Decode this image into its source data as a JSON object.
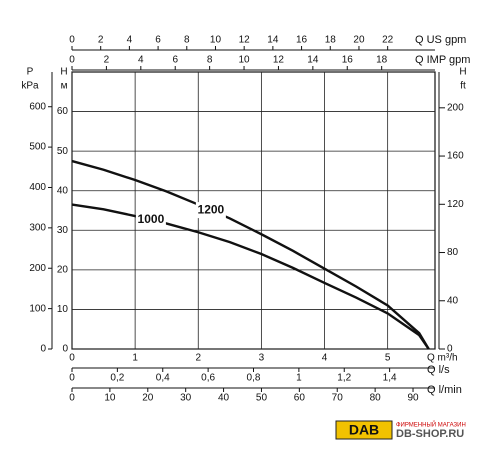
{
  "chart_data": {
    "type": "line",
    "grid": true,
    "xlabel": "Q m³/h",
    "xlim": [
      0,
      5.75
    ],
    "xticks": [
      0,
      1,
      2,
      3,
      4,
      5
    ],
    "ylabel": [
      "H",
      "м"
    ],
    "ylim": [
      0,
      70
    ],
    "yticks": [
      0,
      10,
      20,
      30,
      40,
      50,
      60
    ],
    "y2label": [
      "H",
      "ft"
    ],
    "y2lim": [
      0,
      229.7
    ],
    "y2ticks": [
      0,
      40,
      80,
      120,
      160,
      200
    ],
    "left_axes": [
      {
        "label": [
          "P",
          "kPa"
        ],
        "ylim": [
          0,
          686
        ],
        "ticks": [
          0,
          100,
          200,
          300,
          400,
          500,
          600
        ]
      }
    ],
    "top_axes": [
      {
        "label": "Q US gpm",
        "xlim": [
          0,
          25.3
        ],
        "ticks": [
          0,
          2,
          4,
          6,
          8,
          10,
          12,
          14,
          16,
          18,
          20,
          22
        ]
      },
      {
        "label": "Q IMP gpm",
        "xlim": [
          0,
          21.1
        ],
        "ticks": [
          0,
          2,
          4,
          6,
          8,
          10,
          12,
          14,
          16,
          18
        ]
      }
    ],
    "bottom_axes": [
      {
        "label": "Q l/s",
        "xlim": [
          0,
          1.6
        ],
        "ticks": [
          0,
          {
            "value": 0.2,
            "label": "0,2"
          },
          {
            "value": 0.4,
            "label": "0,4"
          },
          {
            "value": 0.6,
            "label": "0,6"
          },
          {
            "value": 0.8,
            "label": "0,8"
          },
          1,
          {
            "value": 1.2,
            "label": "1,2"
          },
          {
            "value": 1.4,
            "label": "1,4"
          }
        ]
      },
      {
        "label": "Q l/min",
        "xlim": [
          0,
          95.8
        ],
        "ticks": [
          0,
          10,
          20,
          30,
          40,
          50,
          60,
          70,
          80,
          90
        ]
      }
    ],
    "series": [
      {
        "name": "1000",
        "color": "#111111",
        "x": [
          0,
          0.5,
          1,
          1.5,
          2,
          2.5,
          3,
          3.5,
          4,
          4.5,
          5,
          5.5,
          5.65
        ],
        "values": [
          36.5,
          35.3,
          33.6,
          31.7,
          29.5,
          27,
          24,
          20.5,
          16.7,
          13,
          9,
          3.5,
          0
        ]
      },
      {
        "name": "1200",
        "color": "#111111",
        "x": [
          0,
          0.5,
          1,
          1.5,
          2,
          2.5,
          3,
          3.5,
          4,
          4.5,
          5,
          5.5,
          5.65
        ],
        "values": [
          47.5,
          45.3,
          42.7,
          39.8,
          36.5,
          33,
          29,
          24.8,
          20.3,
          15.8,
          11,
          4,
          0
        ]
      }
    ]
  },
  "logo": {
    "brand": "DAB",
    "caption": "ФИРМЕННЫЙ МАГАЗИН",
    "site": "DB-SHOP.RU"
  }
}
